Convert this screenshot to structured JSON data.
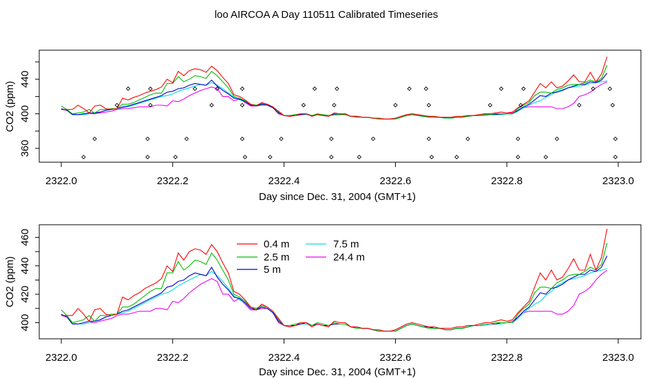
{
  "title": "loo AIRCOA A  Day 110511  Calibrated Timeseries",
  "colors": {
    "0.4 m": "#ff0000",
    "2.5 m": "#00bb00",
    "5 m": "#0000cc",
    "7.5 m": "#00dddd",
    "24.4 m": "#ee00ee",
    "markers": "#000000"
  },
  "chart_data": [
    {
      "type": "line",
      "panel": "top",
      "xlabel": "Day since Dec. 31, 2004 (GMT+1)",
      "ylabel": "CO2 (ppm)",
      "xlim": [
        2322.0,
        2323.0
      ],
      "ylim": [
        348,
        468
      ],
      "xticks": [
        "2322.0",
        "2322.2",
        "2322.4",
        "2322.6",
        "2322.8",
        "2323.0"
      ],
      "yticks": [
        "360",
        "400",
        "440"
      ],
      "grid": false,
      "series_from": "shared",
      "markers": [
        {
          "x": 2322.04,
          "y": 350
        },
        {
          "x": 2322.06,
          "y": 371
        },
        {
          "x": 2322.1,
          "y": 410
        },
        {
          "x": 2322.12,
          "y": 429
        },
        {
          "x": 2322.155,
          "y": 350
        },
        {
          "x": 2322.155,
          "y": 371
        },
        {
          "x": 2322.16,
          "y": 410
        },
        {
          "x": 2322.16,
          "y": 429
        },
        {
          "x": 2322.205,
          "y": 350
        },
        {
          "x": 2322.225,
          "y": 371
        },
        {
          "x": 2322.24,
          "y": 429
        },
        {
          "x": 2322.27,
          "y": 410
        },
        {
          "x": 2322.28,
          "y": 429
        },
        {
          "x": 2322.325,
          "y": 429
        },
        {
          "x": 2322.325,
          "y": 410
        },
        {
          "x": 2322.325,
          "y": 371
        },
        {
          "x": 2322.33,
          "y": 350
        },
        {
          "x": 2322.375,
          "y": 350
        },
        {
          "x": 2322.395,
          "y": 371
        },
        {
          "x": 2322.435,
          "y": 410
        },
        {
          "x": 2322.455,
          "y": 429
        },
        {
          "x": 2322.485,
          "y": 350
        },
        {
          "x": 2322.485,
          "y": 371
        },
        {
          "x": 2322.49,
          "y": 410
        },
        {
          "x": 2322.495,
          "y": 429
        },
        {
          "x": 2322.535,
          "y": 350
        },
        {
          "x": 2322.56,
          "y": 371
        },
        {
          "x": 2322.6,
          "y": 410
        },
        {
          "x": 2322.625,
          "y": 429
        },
        {
          "x": 2322.655,
          "y": 429
        },
        {
          "x": 2322.66,
          "y": 410
        },
        {
          "x": 2322.66,
          "y": 371
        },
        {
          "x": 2322.665,
          "y": 350
        },
        {
          "x": 2322.71,
          "y": 350
        },
        {
          "x": 2322.73,
          "y": 371
        },
        {
          "x": 2322.77,
          "y": 410
        },
        {
          "x": 2322.79,
          "y": 429
        },
        {
          "x": 2322.82,
          "y": 350
        },
        {
          "x": 2322.82,
          "y": 371
        },
        {
          "x": 2322.825,
          "y": 410
        },
        {
          "x": 2322.83,
          "y": 429
        },
        {
          "x": 2322.87,
          "y": 350
        },
        {
          "x": 2322.89,
          "y": 371
        },
        {
          "x": 2322.93,
          "y": 410
        },
        {
          "x": 2322.955,
          "y": 429
        },
        {
          "x": 2322.985,
          "y": 429
        },
        {
          "x": 2322.99,
          "y": 410
        },
        {
          "x": 2322.995,
          "y": 371
        },
        {
          "x": 2322.995,
          "y": 350
        }
      ]
    },
    {
      "type": "line",
      "panel": "bottom",
      "xlabel": "Day since Dec. 31, 2004 (GMT+1)",
      "ylabel": "CO2 (ppm)",
      "xlim": [
        2322.0,
        2323.0
      ],
      "ylim": [
        392,
        466
      ],
      "xticks": [
        "2322.0",
        "2322.2",
        "2322.4",
        "2322.6",
        "2322.8",
        "2323.0"
      ],
      "yticks": [
        "400",
        "420",
        "440",
        "460"
      ],
      "grid": false,
      "legend_position": "top-left",
      "legend": [
        "0.4 m",
        "2.5 m",
        "5 m",
        "7.5 m",
        "24.4 m"
      ],
      "series_from": "shared"
    }
  ],
  "shared_series": {
    "x": [
      2322.0,
      2322.01,
      2322.02,
      2322.03,
      2322.04,
      2322.05,
      2322.06,
      2322.07,
      2322.08,
      2322.09,
      2322.1,
      2322.11,
      2322.12,
      2322.13,
      2322.14,
      2322.15,
      2322.16,
      2322.17,
      2322.18,
      2322.19,
      2322.2,
      2322.21,
      2322.22,
      2322.23,
      2322.24,
      2322.25,
      2322.26,
      2322.27,
      2322.28,
      2322.29,
      2322.3,
      2322.31,
      2322.32,
      2322.33,
      2322.34,
      2322.35,
      2322.36,
      2322.37,
      2322.38,
      2322.39,
      2322.4,
      2322.41,
      2322.42,
      2322.43,
      2322.44,
      2322.45,
      2322.46,
      2322.47,
      2322.48,
      2322.49,
      2322.5,
      2322.51,
      2322.52,
      2322.53,
      2322.54,
      2322.55,
      2322.56,
      2322.57,
      2322.58,
      2322.59,
      2322.6,
      2322.61,
      2322.62,
      2322.63,
      2322.64,
      2322.65,
      2322.66,
      2322.67,
      2322.68,
      2322.69,
      2322.7,
      2322.71,
      2322.72,
      2322.73,
      2322.74,
      2322.75,
      2322.76,
      2322.77,
      2322.78,
      2322.79,
      2322.8,
      2322.81,
      2322.82,
      2322.83,
      2322.84,
      2322.85,
      2322.86,
      2322.87,
      2322.88,
      2322.89,
      2322.9,
      2322.91,
      2322.92,
      2322.93,
      2322.94,
      2322.95,
      2322.96,
      2322.97,
      2322.98
    ],
    "series": [
      {
        "name": "0.4 m",
        "values": [
          405,
          405,
          405,
          410,
          406,
          401,
          409,
          410,
          406,
          405,
          406,
          418,
          416,
          419,
          421,
          424,
          426,
          428,
          431,
          440,
          436,
          449,
          444,
          450,
          452,
          451,
          448,
          455,
          450,
          442,
          435,
          422,
          420,
          416,
          411,
          409,
          413,
          411,
          408,
          403,
          398,
          397,
          398,
          400,
          400,
          397,
          399,
          398,
          397,
          401,
          400,
          400,
          397,
          397,
          396,
          396,
          395,
          395,
          394,
          394,
          395,
          397,
          399,
          400,
          399,
          398,
          397,
          397,
          396,
          396,
          396,
          397,
          397,
          398,
          398,
          399,
          400,
          400,
          401,
          402,
          401,
          402,
          407,
          411,
          415,
          425,
          435,
          430,
          437,
          430,
          432,
          438,
          445,
          437,
          437,
          448,
          437,
          446,
          466
        ]
      },
      {
        "name": "2.5 m",
        "values": [
          409,
          405,
          400,
          401,
          402,
          405,
          401,
          405,
          405,
          406,
          406,
          411,
          411,
          413,
          416,
          419,
          422,
          424,
          424,
          435,
          435,
          443,
          437,
          440,
          444,
          443,
          441,
          449,
          444,
          437,
          430,
          420,
          418,
          415,
          411,
          410,
          412,
          411,
          408,
          402,
          398,
          398,
          399,
          400,
          400,
          398,
          400,
          399,
          398,
          400,
          399,
          399,
          397,
          396,
          396,
          396,
          395,
          394,
          394,
          394,
          394,
          396,
          398,
          399,
          398,
          397,
          396,
          396,
          396,
          395,
          395,
          396,
          396,
          397,
          398,
          398,
          399,
          399,
          400,
          400,
          400,
          400,
          406,
          410,
          413,
          421,
          425,
          425,
          424,
          428,
          430,
          433,
          434,
          434,
          436,
          439,
          437,
          441,
          456
        ]
      },
      {
        "name": "5 m",
        "values": [
          406,
          404,
          399,
          399,
          400,
          401,
          401,
          402,
          404,
          405,
          406,
          408,
          409,
          411,
          413,
          415,
          417,
          419,
          421,
          425,
          426,
          429,
          430,
          433,
          435,
          434,
          433,
          439,
          432,
          427,
          423,
          418,
          417,
          414,
          410,
          409,
          411,
          410,
          407,
          401,
          398,
          398,
          398,
          399,
          400,
          398,
          399,
          398,
          398,
          399,
          399,
          399,
          397,
          397,
          396,
          396,
          395,
          394,
          394,
          394,
          394,
          396,
          398,
          399,
          398,
          397,
          397,
          396,
          396,
          395,
          395,
          396,
          396,
          397,
          398,
          398,
          399,
          399,
          399,
          400,
          400,
          400,
          404,
          408,
          411,
          416,
          421,
          420,
          424,
          425,
          427,
          430,
          432,
          434,
          434,
          437,
          436,
          439,
          447
        ]
      },
      {
        "name": "7.5 m",
        "values": [
          405,
          405,
          400,
          399,
          399,
          400,
          401,
          402,
          404,
          405,
          406,
          407,
          408,
          410,
          412,
          414,
          416,
          418,
          420,
          421,
          423,
          426,
          428,
          430,
          432,
          434,
          433,
          436,
          433,
          429,
          424,
          419,
          416,
          414,
          411,
          410,
          411,
          410,
          407,
          401,
          398,
          397,
          398,
          399,
          399,
          398,
          399,
          398,
          398,
          399,
          399,
          399,
          397,
          397,
          396,
          396,
          395,
          394,
          394,
          394,
          394,
          396,
          398,
          399,
          398,
          397,
          397,
          396,
          396,
          395,
          395,
          396,
          396,
          397,
          398,
          398,
          398,
          399,
          399,
          399,
          400,
          400,
          403,
          407,
          410,
          413,
          415,
          419,
          422,
          426,
          428,
          430,
          431,
          432,
          433,
          435,
          436,
          437,
          438
        ]
      },
      {
        "name": "24.4 m",
        "values": [
          405,
          404,
          400,
          399,
          399,
          400,
          400,
          401,
          402,
          403,
          405,
          406,
          406,
          407,
          408,
          408,
          408,
          410,
          410,
          409,
          415,
          414,
          417,
          421,
          424,
          427,
          429,
          431,
          429,
          420,
          420,
          415,
          417,
          413,
          409,
          409,
          410,
          410,
          407,
          400,
          398,
          397,
          398,
          399,
          399,
          398,
          399,
          398,
          398,
          399,
          399,
          399,
          397,
          397,
          396,
          396,
          395,
          394,
          394,
          394,
          394,
          396,
          398,
          399,
          398,
          397,
          397,
          396,
          396,
          395,
          395,
          396,
          396,
          397,
          398,
          398,
          398,
          399,
          399,
          400,
          400,
          401,
          404,
          407,
          408,
          408,
          408,
          408,
          408,
          406,
          406,
          408,
          412,
          420,
          422,
          425,
          430,
          434,
          437
        ]
      }
    ]
  }
}
